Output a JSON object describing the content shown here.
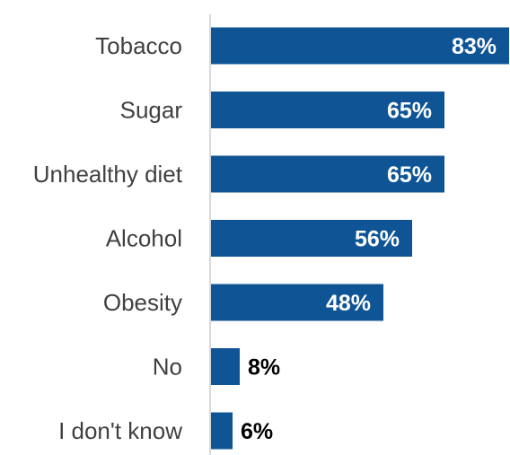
{
  "chart_data": {
    "type": "bar",
    "orientation": "horizontal",
    "categories": [
      "Tobacco",
      "Sugar",
      "Unhealthy diet",
      "Alcohol",
      "Obesity",
      "No",
      "I don't know"
    ],
    "values": [
      83,
      65,
      65,
      56,
      48,
      8,
      6
    ],
    "value_labels": [
      "83%",
      "65%",
      "65%",
      "56%",
      "48%",
      "8%",
      "6%"
    ],
    "unit": "%",
    "xlim": [
      0,
      83
    ],
    "grid": false,
    "legend": "none",
    "colors": {
      "bar": "#0F5495",
      "axis": "#D9D9D9",
      "category_text": "#404040",
      "value_inside": "#FFFFFF",
      "value_outside": "#000000"
    }
  }
}
